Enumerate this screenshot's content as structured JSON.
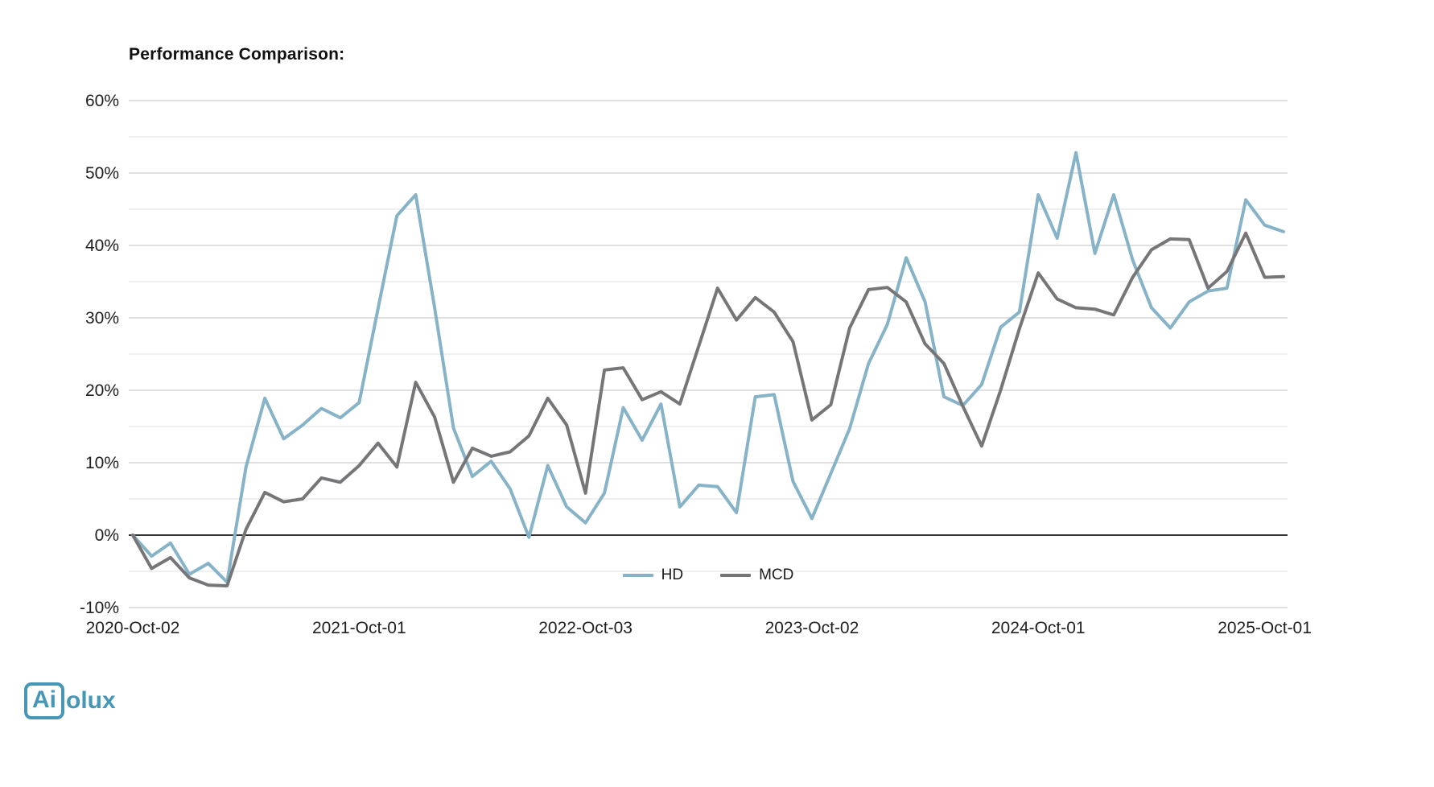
{
  "title": "Performance Comparison:",
  "logo": {
    "boxed": "Ai",
    "rest": "olux",
    "color": "#4697b5"
  },
  "legend": {
    "items": [
      {
        "label": "HD",
        "color": "#86b3c7"
      },
      {
        "label": "MCD",
        "color": "#767678"
      }
    ]
  },
  "chart_data": {
    "type": "line",
    "title": "Performance Comparison:",
    "xlabel": "",
    "ylabel": "",
    "ylim": [
      -10,
      60
    ],
    "y_tick_step_labeled": 10,
    "y_grid_step": 5,
    "y_tick_suffix": "%",
    "grid": true,
    "legend_position": "bottom-center",
    "x": [
      "2020-10",
      "2020-11",
      "2020-12",
      "2021-01",
      "2021-02",
      "2021-03",
      "2021-04",
      "2021-05",
      "2021-06",
      "2021-07",
      "2021-08",
      "2021-09",
      "2021-10",
      "2021-11",
      "2021-12",
      "2022-01",
      "2022-02",
      "2022-03",
      "2022-04",
      "2022-05",
      "2022-06",
      "2022-07",
      "2022-08",
      "2022-09",
      "2022-10",
      "2022-11",
      "2022-12",
      "2023-01",
      "2023-02",
      "2023-03",
      "2023-04",
      "2023-05",
      "2023-06",
      "2023-07",
      "2023-08",
      "2023-09",
      "2023-10",
      "2023-11",
      "2023-12",
      "2024-01",
      "2024-02",
      "2024-03",
      "2024-04",
      "2024-05",
      "2024-06",
      "2024-07",
      "2024-08",
      "2024-09",
      "2024-10",
      "2024-11",
      "2024-12",
      "2025-01",
      "2025-02",
      "2025-03",
      "2025-04",
      "2025-05",
      "2025-06",
      "2025-07",
      "2025-08",
      "2025-09",
      "2025-10",
      "2025-11"
    ],
    "x_tick_labels": [
      "2020-Oct-02",
      "2021-Oct-01",
      "2022-Oct-03",
      "2023-Oct-02",
      "2024-Oct-01",
      "2025-Oct-01"
    ],
    "x_tick_indices": [
      0,
      12,
      24,
      36,
      48,
      60
    ],
    "series": [
      {
        "name": "HD",
        "color": "#86b3c7",
        "values": [
          0,
          -2.9,
          -1.1,
          -5.4,
          -3.9,
          -6.5,
          9.4,
          18.9,
          13.3,
          15.2,
          17.5,
          16.2,
          18.3,
          31.3,
          44.1,
          47.0,
          31.4,
          14.8,
          8.1,
          10.2,
          6.4,
          -0.3,
          9.6,
          3.9,
          1.7,
          5.8,
          17.6,
          13.1,
          18.1,
          3.9,
          6.9,
          6.7,
          3.1,
          19.1,
          19.4,
          7.4,
          2.3,
          8.5,
          14.7,
          23.7,
          29.1,
          38.3,
          32.2,
          19.1,
          17.9,
          20.8,
          28.7,
          30.8,
          47.0,
          41.0,
          52.8,
          38.9,
          47.0,
          38.0,
          31.4,
          28.6,
          32.2,
          33.7,
          34.1,
          46.3,
          42.8,
          41.9
        ]
      },
      {
        "name": "MCD",
        "color": "#767678",
        "values": [
          0,
          -4.6,
          -3.1,
          -5.9,
          -6.9,
          -7.0,
          0.8,
          5.9,
          4.6,
          5.0,
          7.9,
          7.3,
          9.6,
          12.7,
          9.4,
          21.1,
          16.3,
          7.3,
          12.0,
          10.9,
          11.5,
          13.7,
          18.9,
          15.2,
          5.8,
          22.8,
          23.1,
          18.7,
          19.8,
          18.1,
          26.1,
          34.1,
          29.7,
          32.8,
          30.8,
          26.7,
          15.9,
          18.0,
          28.6,
          33.9,
          34.2,
          32.2,
          26.4,
          23.7,
          17.8,
          12.3,
          20.0,
          28.5,
          36.2,
          32.6,
          31.4,
          31.2,
          30.4,
          35.6,
          39.4,
          40.9,
          40.8,
          34.1,
          36.4,
          41.7,
          35.6,
          35.7
        ]
      }
    ],
    "colors": {
      "grid_minor": "#e8e8e8",
      "grid_major": "#cdcdcd",
      "zero_line": "#333333",
      "tick_text": "#1f1f1f"
    }
  }
}
